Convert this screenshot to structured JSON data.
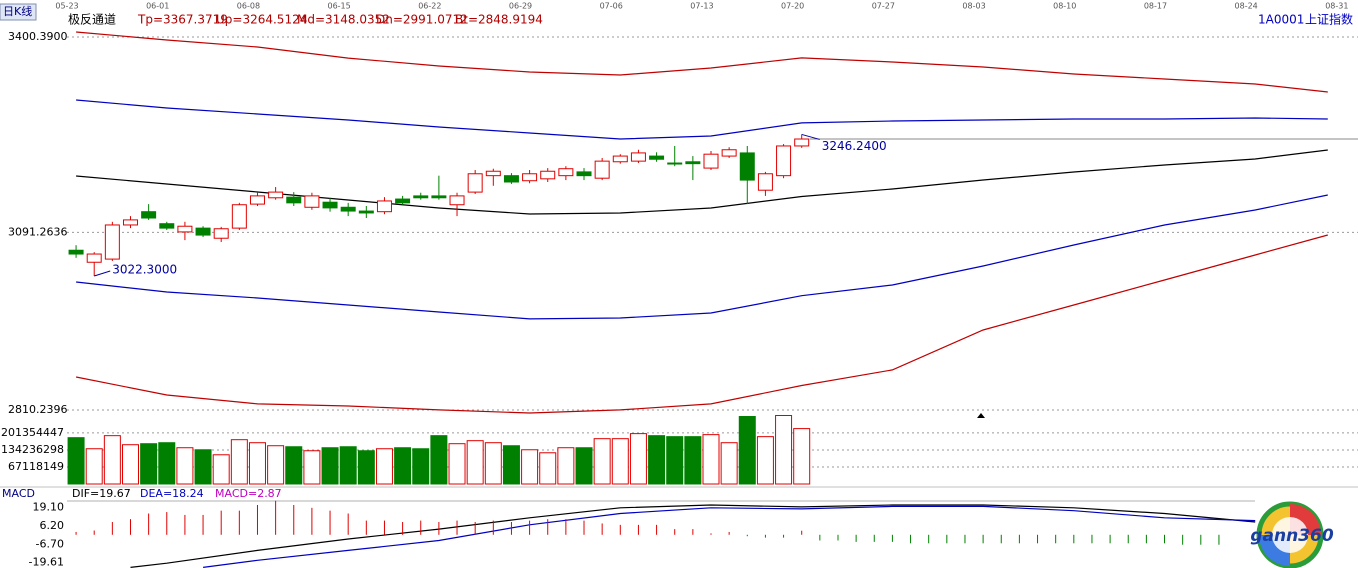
{
  "chart_data": [
    {
      "type": "candlestick",
      "period": "日K线",
      "title": "极反通道",
      "symbol": "1A0001",
      "symbol_name": "上证指数",
      "xlim": [
        -0.5,
        70.5
      ],
      "xticks": [
        {
          "value": -0.5,
          "label": "05-23"
        },
        {
          "value": 4.5,
          "label": "06-01"
        },
        {
          "value": 9.5,
          "label": "06-08"
        },
        {
          "value": 14.5,
          "label": "06-15"
        },
        {
          "value": 19.5,
          "label": "06-22"
        },
        {
          "value": 24.5,
          "label": "06-29"
        },
        {
          "value": 29.5,
          "label": "07-06"
        },
        {
          "value": 34.5,
          "label": "07-13"
        },
        {
          "value": 39.5,
          "label": "07-20"
        },
        {
          "value": 44.5,
          "label": "07-27"
        },
        {
          "value": 49.5,
          "label": "08-03"
        },
        {
          "value": 54.5,
          "label": "08-10"
        },
        {
          "value": 59.5,
          "label": "08-17"
        },
        {
          "value": 64.5,
          "label": "08-24"
        },
        {
          "value": 69.5,
          "label": "08-31"
        }
      ],
      "ylim": [
        2802.3,
        3411.5
      ],
      "yticks": [
        {
          "value": 3400.39,
          "label": "3400.3900"
        },
        {
          "value": 3091.2636,
          "label": "3091.2636"
        },
        {
          "value": 2810.2396,
          "label": "2810.2396"
        }
      ],
      "grid": true,
      "up_color": "#e00000",
      "down_color": "#008000",
      "legend_color": "#b00000",
      "x": [
        0,
        1,
        2,
        3,
        4,
        5,
        6,
        7,
        8,
        9,
        10,
        11,
        12,
        13,
        14,
        15,
        16,
        17,
        18,
        19,
        20,
        21,
        22,
        23,
        24,
        25,
        26,
        27,
        28,
        29,
        30,
        31,
        32,
        33,
        34,
        35,
        36,
        37,
        38,
        39,
        40
      ],
      "open": [
        3063,
        3044,
        3049,
        3103,
        3124,
        3105,
        3092,
        3098,
        3082,
        3098,
        3136,
        3146,
        3147,
        3131,
        3139,
        3131,
        3125,
        3124,
        3144,
        3149,
        3149,
        3135,
        3155,
        3181,
        3181,
        3173,
        3176,
        3181,
        3187,
        3177,
        3203,
        3204,
        3212,
        3201,
        3203,
        3193,
        3212,
        3217,
        3158,
        3181,
        3228
      ],
      "close": [
        3057,
        3057,
        3103,
        3111,
        3114,
        3098,
        3101,
        3087,
        3097,
        3135,
        3149,
        3155,
        3138,
        3149,
        3130,
        3125,
        3122,
        3141,
        3138,
        3146,
        3146,
        3149,
        3184,
        3188,
        3171,
        3184,
        3188,
        3192,
        3181,
        3204,
        3212,
        3217,
        3207,
        3200,
        3200,
        3215,
        3222,
        3174,
        3184,
        3228,
        3239
      ],
      "high": [
        3071,
        3060,
        3108,
        3117,
        3136,
        3108,
        3108,
        3101,
        3100,
        3138,
        3154,
        3163,
        3155,
        3154,
        3146,
        3138,
        3133,
        3147,
        3149,
        3154,
        3181,
        3154,
        3190,
        3192,
        3185,
        3190,
        3193,
        3196,
        3193,
        3209,
        3215,
        3222,
        3218,
        3228,
        3212,
        3220,
        3226,
        3228,
        3187,
        3231,
        3246.24
      ],
      "low": [
        3051,
        3022.3,
        3046,
        3098,
        3111,
        3095,
        3079,
        3084,
        3076,
        3095,
        3133,
        3143,
        3133,
        3127,
        3124,
        3117,
        3114,
        3120,
        3135,
        3143,
        3143,
        3117,
        3152,
        3165,
        3168,
        3169,
        3171,
        3174,
        3174,
        3174,
        3200,
        3201,
        3203,
        3196,
        3174,
        3190,
        3209,
        3136,
        3149,
        3177,
        3225
      ],
      "annotations": {
        "max_label": "3246.2400",
        "min_label": "3022.3000"
      },
      "series": [
        {
          "name": "Tp=3367.3719",
          "color": "#c00000",
          "x": [
            0,
            5,
            10,
            15,
            20,
            25,
            30,
            35,
            40,
            45,
            50,
            55,
            60,
            65,
            69
          ],
          "values": [
            3408.3,
            3395.6,
            3384.6,
            3367.1,
            3354.5,
            3345.0,
            3340.3,
            3351.3,
            3367.37,
            3360.8,
            3352.9,
            3341.8,
            3333.9,
            3326.0,
            3313.4
          ]
        },
        {
          "name": "Up=3264.5124",
          "color": "#0000c0",
          "x": [
            0,
            5,
            10,
            15,
            20,
            25,
            30,
            35,
            40,
            45,
            50,
            55,
            60,
            65,
            69
          ],
          "values": [
            3300.7,
            3288.0,
            3278.6,
            3269.1,
            3258.0,
            3248.5,
            3239.0,
            3243.7,
            3264.51,
            3267.5,
            3269.1,
            3270.7,
            3270.7,
            3272.2,
            3270.7
          ]
        },
        {
          "name": "Md=3148.0352",
          "color": "#000000",
          "x": [
            0,
            5,
            10,
            15,
            20,
            25,
            30,
            35,
            40,
            45,
            50,
            55,
            60,
            65,
            69
          ],
          "values": [
            3180.5,
            3167.8,
            3155.2,
            3142.5,
            3129.8,
            3120.4,
            3121.9,
            3129.8,
            3148.04,
            3159.9,
            3174.1,
            3186.8,
            3197.9,
            3207.4,
            3221.6
          ]
        },
        {
          "name": "Dn=2991.0712",
          "color": "#0000c0",
          "x": [
            0,
            5,
            10,
            15,
            20,
            25,
            30,
            35,
            40,
            45,
            50,
            55,
            60,
            65,
            69
          ],
          "values": [
            3012.8,
            2997.0,
            2987.5,
            2976.4,
            2965.3,
            2954.3,
            2955.8,
            2963.7,
            2991.07,
            3008.0,
            3038.1,
            3071.3,
            3102.9,
            3126.7,
            3150.4
          ]
        },
        {
          "name": "Bt=2848.9194",
          "color": "#c00000",
          "x": [
            0,
            5,
            10,
            15,
            20,
            25,
            30,
            35,
            40,
            45,
            50,
            55,
            60,
            65,
            69
          ],
          "values": [
            2862.5,
            2834.0,
            2819.8,
            2816.6,
            2810.3,
            2805.5,
            2810.3,
            2819.8,
            2848.92,
            2873.6,
            2936.8,
            2976.4,
            3015.9,
            3055.5,
            3087.1
          ]
        }
      ]
    },
    {
      "type": "bar",
      "xlim": [
        -0.5,
        70.5
      ],
      "ylim": [
        0,
        276000000
      ],
      "yticks": [
        201354447,
        134236298,
        67118149
      ],
      "grid": true,
      "up_color": "#e00000",
      "down_color": "#008000",
      "values": [
        182700000,
        139000000,
        190600000,
        154900000,
        158900000,
        162800000,
        143000000,
        135000000,
        115200000,
        174700000,
        162800000,
        150900000,
        146900000,
        131100000,
        143000000,
        146900000,
        131100000,
        139000000,
        143000000,
        139000000,
        190600000,
        158900000,
        170800000,
        162800000,
        150900000,
        135000000,
        123100000,
        143000000,
        143000000,
        178700000,
        178700000,
        198600000,
        190600000,
        186700000,
        186700000,
        194600000,
        162800000,
        266100000,
        186700000,
        270100000,
        218400000
      ]
    },
    {
      "type": "macd",
      "title": "MACD",
      "xlim": [
        -0.5,
        70.5
      ],
      "ylim": [
        -23.4,
        23.8
      ],
      "yticks": [
        {
          "value": 19.1,
          "label": "19.10"
        },
        {
          "value": 6.2,
          "label": "6.20"
        },
        {
          "value": -6.7,
          "label": "-6.70"
        },
        -19.61
      ],
      "grid": false,
      "up_color": "#e00000",
      "down_color": "#008000",
      "series": [
        {
          "name": "DIF=19.67",
          "color": "#000000",
          "x": [
            3,
            5,
            10,
            15,
            20,
            25,
            30,
            35,
            40,
            45,
            50,
            55,
            60,
            65
          ],
          "values": [
            -23,
            -20,
            -11,
            -3,
            4,
            12,
            19,
            21,
            19.67,
            21,
            21,
            19,
            15,
            9
          ]
        },
        {
          "name": "DEA=18.24",
          "color": "#0000c0",
          "x": [
            7,
            10,
            15,
            20,
            25,
            30,
            35,
            40,
            45,
            50,
            55,
            60,
            65
          ],
          "values": [
            -23,
            -18,
            -11,
            -4,
            7,
            15,
            19,
            18.24,
            20,
            20,
            17,
            12,
            10
          ]
        },
        {
          "name": "MACD=2.87",
          "color": "#c000c0",
          "values": [
            2,
            3,
            9,
            11,
            15,
            16,
            14,
            14,
            17,
            17,
            21,
            24,
            21,
            19,
            17,
            15,
            10,
            10,
            9,
            10,
            9,
            10,
            9,
            10,
            9,
            10,
            11,
            11,
            10,
            8,
            7,
            7,
            7,
            4,
            4,
            1,
            2,
            -1,
            -2,
            -2,
            2.87,
            -4,
            -4,
            -5,
            -5,
            -5,
            -6,
            -6,
            -6,
            -6,
            -6,
            -6,
            -6,
            -6,
            -6,
            -6,
            -6,
            -6,
            -6,
            -6,
            -6,
            -7,
            -7,
            -7
          ]
        }
      ]
    }
  ],
  "logo": "gann360"
}
